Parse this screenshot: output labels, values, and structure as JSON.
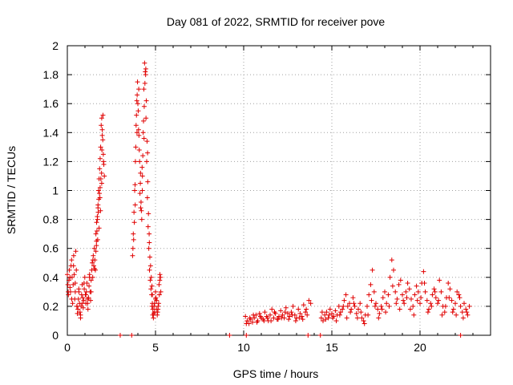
{
  "chart_data": {
    "type": "scatter",
    "title": "Day 081 of 2022, SRMTID for receiver pove",
    "xlabel": "GPS time / hours",
    "ylabel": "SRMTID / TECUs",
    "xlim": [
      0,
      24
    ],
    "ylim": [
      0,
      2
    ],
    "xticks": [
      0,
      5,
      10,
      15,
      20
    ],
    "yticks": [
      0,
      0.2,
      0.4,
      0.6,
      0.8,
      1,
      1.2,
      1.4,
      1.6,
      1.8,
      2
    ],
    "xtick_labels": [
      "0",
      "5",
      "10",
      "15",
      "20"
    ],
    "ytick_labels": [
      "0",
      "0.2",
      "0.4",
      "0.6",
      "0.8",
      "1",
      "1.2",
      "1.4",
      "1.6",
      "1.8",
      "2"
    ],
    "grid": true,
    "marker": "plus",
    "color": "#e00000",
    "series": [
      {
        "x": [
          0.0,
          0.03,
          0.06,
          0.09,
          0.12,
          0.15,
          0.18,
          0.21,
          0.24,
          0.27,
          0.3,
          0.33,
          0.36,
          0.39,
          0.42,
          0.45,
          0.48,
          0.51,
          0.54,
          0.57,
          0.6,
          0.63,
          0.66,
          0.69,
          0.72,
          0.75,
          0.78,
          0.81,
          0.84,
          0.87,
          0.9,
          0.93,
          0.96,
          0.99,
          1.02,
          1.05,
          1.08,
          1.11,
          1.14,
          1.17,
          1.2,
          1.23,
          1.26,
          1.29,
          1.32,
          1.35,
          1.38,
          1.41,
          1.44,
          1.47,
          1.5,
          1.53,
          1.56,
          1.59,
          1.62,
          1.65,
          1.68,
          1.71,
          1.74,
          1.77,
          1.8,
          1.83,
          1.86,
          1.89,
          1.92,
          1.95,
          1.98,
          2.01,
          2.04,
          2.07,
          2.1,
          0.05,
          0.15,
          0.25,
          0.35,
          0.45,
          0.55,
          0.65,
          0.75,
          0.85,
          0.95,
          1.05,
          1.15,
          1.25,
          1.35,
          1.45,
          1.55,
          1.65,
          1.75,
          1.85,
          1.95,
          2.05,
          1.62,
          1.7,
          1.78,
          1.86,
          1.94,
          1.66,
          1.74,
          1.82,
          1.9,
          1.98,
          1.72,
          1.8,
          1.88,
          1.96,
          2.02
        ],
        "y": [
          0.42,
          0.35,
          0.28,
          0.38,
          0.45,
          0.33,
          0.3,
          0.48,
          0.52,
          0.4,
          0.22,
          0.35,
          0.55,
          0.42,
          0.25,
          0.3,
          0.58,
          0.45,
          0.2,
          0.15,
          0.18,
          0.25,
          0.3,
          0.22,
          0.16,
          0.12,
          0.2,
          0.28,
          0.35,
          0.26,
          0.19,
          0.24,
          0.32,
          0.4,
          0.28,
          0.22,
          0.3,
          0.36,
          0.25,
          0.18,
          0.26,
          0.34,
          0.42,
          0.3,
          0.24,
          0.38,
          0.45,
          0.5,
          0.4,
          0.55,
          0.48,
          0.6,
          0.52,
          0.45,
          0.58,
          0.65,
          0.72,
          0.8,
          0.9,
          1.0,
          1.08,
          1.15,
          1.22,
          1.3,
          1.45,
          1.5,
          1.42,
          1.35,
          1.25,
          1.18,
          1.1,
          0.3,
          0.4,
          0.25,
          0.48,
          0.36,
          0.2,
          0.32,
          0.14,
          0.22,
          0.36,
          0.28,
          0.22,
          0.4,
          0.3,
          0.52,
          0.46,
          0.62,
          0.85,
          0.95,
          1.05,
          1.2,
          0.7,
          0.82,
          0.94,
          1.02,
          1.12,
          0.78,
          0.88,
          0.98,
          1.08,
          1.38,
          0.66,
          0.74,
          0.86,
          1.28,
          1.52
        ]
      },
      {
        "x": [
          3.7,
          3.74,
          3.78,
          3.82,
          3.86,
          3.9,
          3.94,
          3.98,
          4.02,
          4.06,
          4.1,
          4.14,
          4.18,
          4.22,
          4.26,
          4.3,
          4.34,
          4.38,
          4.42,
          4.46,
          4.5,
          4.54,
          4.58,
          4.62,
          4.66,
          4.7,
          4.74,
          4.78,
          4.82,
          3.72,
          3.8,
          3.88,
          3.96,
          4.04,
          4.12,
          4.2,
          4.28,
          4.36,
          4.44,
          4.52,
          4.6,
          4.68,
          4.76,
          3.76,
          3.84,
          3.92,
          4.0,
          4.08,
          4.16,
          4.24,
          4.32,
          4.4,
          4.48,
          4.56,
          4.64,
          4.72,
          4.8,
          3.85,
          3.95,
          4.05,
          4.15,
          4.25,
          4.35,
          4.45,
          4.55,
          4.65
        ],
        "y": [
          0.55,
          0.7,
          0.85,
          1.0,
          1.2,
          1.45,
          1.62,
          1.75,
          1.55,
          1.38,
          1.2,
          1.05,
          0.92,
          0.8,
          1.1,
          1.4,
          1.7,
          1.88,
          1.82,
          1.5,
          1.2,
          0.95,
          0.75,
          0.6,
          0.45,
          0.38,
          0.32,
          0.28,
          0.22,
          0.6,
          0.78,
          1.3,
          1.66,
          1.42,
          0.98,
          0.86,
          1.24,
          1.58,
          1.8,
          1.34,
          0.84,
          0.54,
          0.4,
          0.66,
          1.04,
          1.52,
          1.6,
          1.28,
          0.88,
          1.16,
          1.48,
          1.74,
          1.62,
          1.06,
          0.7,
          0.48,
          0.34,
          0.9,
          1.4,
          1.7,
          1.12,
          1.0,
          1.36,
          1.84,
          1.26,
          0.64
        ]
      },
      {
        "x": [
          4.8,
          4.85,
          4.9,
          4.95,
          5.0,
          5.05,
          5.1,
          5.15,
          5.2,
          5.25,
          5.3,
          4.82,
          4.88,
          4.94,
          5.0,
          5.06,
          5.12,
          5.18,
          5.24,
          4.84,
          4.92,
          5.02,
          5.14,
          5.22,
          5.28
        ],
        "y": [
          0.2,
          0.18,
          0.15,
          0.22,
          0.25,
          0.18,
          0.14,
          0.2,
          0.35,
          0.42,
          0.3,
          0.28,
          0.12,
          0.16,
          0.3,
          0.24,
          0.16,
          0.22,
          0.38,
          0.14,
          0.2,
          0.26,
          0.18,
          0.28,
          0.4
        ]
      },
      {
        "x": [
          3.0,
          3.65,
          9.2,
          10.15,
          13.65,
          14.35,
          22.3
        ],
        "y": [
          0.0,
          0.0,
          0.0,
          0.0,
          0.0,
          0.0,
          0.0
        ]
      },
      {
        "x": [
          10.1,
          10.2,
          10.3,
          10.4,
          10.5,
          10.6,
          10.7,
          10.8,
          10.9,
          11.0,
          11.1,
          11.2,
          11.3,
          11.4,
          11.5,
          11.6,
          11.7,
          11.8,
          11.9,
          12.0,
          12.1,
          12.2,
          12.3,
          12.4,
          12.5,
          12.6,
          12.7,
          12.8,
          12.9,
          13.0,
          13.1,
          13.2,
          13.3,
          13.4,
          13.5,
          13.6,
          13.7,
          13.8,
          14.4,
          14.5,
          14.6,
          14.7,
          14.8,
          14.9,
          15.0,
          15.1,
          15.2,
          15.3,
          15.4,
          15.5,
          15.6,
          15.7,
          15.8,
          15.9,
          16.0,
          16.1,
          16.2,
          16.3,
          16.4,
          16.5,
          16.6,
          16.7,
          16.8,
          16.9,
          17.0,
          17.1,
          17.2,
          17.3,
          17.4,
          17.5,
          17.6,
          17.7,
          17.8,
          17.9,
          18.0,
          18.1,
          18.2,
          18.3,
          18.4,
          18.5,
          18.6,
          18.7,
          18.8,
          18.9,
          19.0,
          19.1,
          19.2,
          19.3,
          19.4,
          19.5,
          19.6,
          19.7,
          19.8,
          19.9,
          20.0,
          20.1,
          20.2,
          20.3,
          20.4,
          20.5,
          20.6,
          20.7,
          20.8,
          20.9,
          21.0,
          21.1,
          21.2,
          21.3,
          21.4,
          21.5,
          21.6,
          21.7,
          21.8,
          21.9,
          22.0,
          22.1,
          22.2,
          22.3,
          22.4,
          22.5,
          22.6,
          22.7,
          22.8
        ],
        "y": [
          0.13,
          0.1,
          0.08,
          0.11,
          0.09,
          0.12,
          0.14,
          0.1,
          0.15,
          0.12,
          0.11,
          0.16,
          0.13,
          0.1,
          0.14,
          0.18,
          0.12,
          0.15,
          0.11,
          0.13,
          0.17,
          0.14,
          0.12,
          0.19,
          0.15,
          0.13,
          0.16,
          0.2,
          0.14,
          0.12,
          0.18,
          0.15,
          0.13,
          0.21,
          0.16,
          0.14,
          0.24,
          0.22,
          0.12,
          0.1,
          0.14,
          0.16,
          0.12,
          0.18,
          0.15,
          0.13,
          0.17,
          0.14,
          0.2,
          0.16,
          0.18,
          0.24,
          0.28,
          0.2,
          0.22,
          0.18,
          0.26,
          0.2,
          0.15,
          0.18,
          0.22,
          0.12,
          0.1,
          0.14,
          0.2,
          0.28,
          0.35,
          0.45,
          0.3,
          0.22,
          0.18,
          0.15,
          0.2,
          0.26,
          0.3,
          0.22,
          0.28,
          0.4,
          0.52,
          0.45,
          0.3,
          0.25,
          0.35,
          0.38,
          0.28,
          0.22,
          0.3,
          0.36,
          0.32,
          0.25,
          0.2,
          0.28,
          0.34,
          0.3,
          0.22,
          0.36,
          0.44,
          0.3,
          0.24,
          0.18,
          0.22,
          0.28,
          0.32,
          0.26,
          0.22,
          0.38,
          0.3,
          0.2,
          0.16,
          0.26,
          0.36,
          0.32,
          0.24,
          0.18,
          0.22,
          0.3,
          0.28,
          0.2,
          0.16,
          0.22,
          0.18,
          0.14,
          0.2
        ]
      },
      {
        "x": [
          10.15,
          10.35,
          10.55,
          10.75,
          10.95,
          11.15,
          11.35,
          11.55,
          11.75,
          11.95,
          12.15,
          12.35,
          12.55,
          12.75,
          12.95,
          13.15,
          13.35,
          13.55,
          14.45,
          14.65,
          14.85,
          15.05,
          15.25,
          15.45,
          15.65,
          15.85,
          16.05,
          16.25,
          16.45,
          16.65,
          16.85,
          17.05,
          17.25,
          17.45,
          17.65,
          17.85,
          18.05,
          18.25,
          18.45,
          18.65,
          18.85,
          19.05,
          19.25,
          19.45,
          19.65,
          19.85,
          20.05,
          20.25,
          20.45,
          20.65,
          20.85,
          21.05,
          21.25,
          21.45,
          21.65,
          21.85,
          22.05,
          22.25,
          22.45,
          22.65
        ],
        "y": [
          0.08,
          0.12,
          0.14,
          0.09,
          0.13,
          0.1,
          0.12,
          0.1,
          0.16,
          0.11,
          0.12,
          0.16,
          0.11,
          0.14,
          0.1,
          0.12,
          0.11,
          0.18,
          0.16,
          0.11,
          0.14,
          0.12,
          0.1,
          0.14,
          0.2,
          0.12,
          0.16,
          0.22,
          0.12,
          0.16,
          0.08,
          0.14,
          0.24,
          0.2,
          0.12,
          0.18,
          0.16,
          0.2,
          0.34,
          0.22,
          0.18,
          0.24,
          0.26,
          0.18,
          0.14,
          0.24,
          0.26,
          0.36,
          0.16,
          0.2,
          0.3,
          0.24,
          0.14,
          0.2,
          0.26,
          0.16,
          0.14,
          0.26,
          0.12,
          0.16
        ]
      }
    ]
  }
}
